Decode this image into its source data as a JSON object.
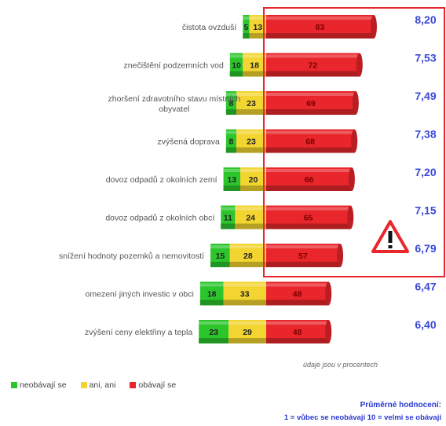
{
  "chart_data": {
    "type": "bar",
    "orientation": "horizontal",
    "stacked": true,
    "categories": [
      "čistota ovzduší",
      "znečištění podzemních vod",
      [
        "zhoršení zdravotního stavu místních",
        "obyvatel"
      ],
      "zvýšená doprava",
      "dovoz odpadů z okolních zemí",
      "dovoz odpadů z okolních obcí",
      "snížení hodnoty pozemků a nemovitostí",
      "omezení jiných investic v obci",
      "zvýšení ceny elektřiny a tepla"
    ],
    "series": [
      {
        "name": "neobávají se",
        "color": "#2cc62c",
        "values": [
          5,
          10,
          8,
          8,
          13,
          11,
          15,
          18,
          23
        ]
      },
      {
        "name": "ani, ani",
        "color": "#f2d530",
        "values": [
          13,
          18,
          23,
          23,
          20,
          24,
          28,
          33,
          29
        ]
      },
      {
        "name": "obávají se",
        "color": "#e8262b",
        "values": [
          83,
          72,
          69,
          68,
          66,
          65,
          57,
          48,
          48
        ]
      }
    ],
    "averages": [
      "8,20",
      "7,53",
      "7,49",
      "7,38",
      "7,20",
      "7,15",
      "6,79",
      "6,47",
      "6,40"
    ],
    "xlim": [
      0,
      100
    ],
    "note": "údaje jsou v procentech",
    "average_title": "Průměrné hodnocení:",
    "average_scale": "1 = vůbec se neobávají   10 = velmi se obávají",
    "highlight_color": "#e8262b",
    "value_color": "#3a48d8"
  }
}
